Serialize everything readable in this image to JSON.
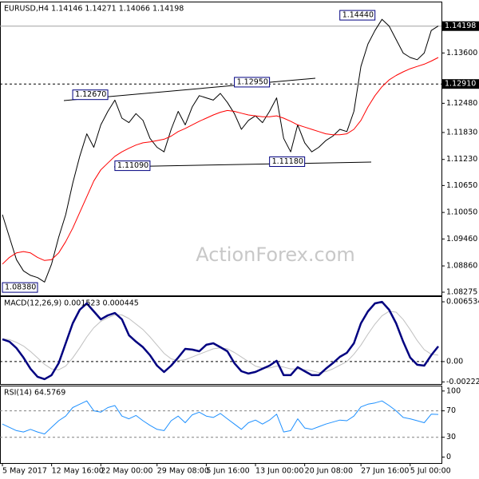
{
  "chart_data": [
    {
      "type": "line",
      "title": "EURUSD,H4  1.14146 1.14271 1.14066 1.14198",
      "watermark": "ActionForex.com",
      "ylim": [
        1.08204,
        1.14726
      ],
      "yticks": [
        {
          "value": 1.136,
          "label": "1.13600"
        },
        {
          "value": 1.1248,
          "label": "1.12480"
        },
        {
          "value": 1.1183,
          "label": "1.11830"
        },
        {
          "value": 1.1123,
          "label": "1.11230"
        },
        {
          "value": 1.1065,
          "label": "1.10650"
        },
        {
          "value": 1.1005,
          "label": "1.10050"
        },
        {
          "value": 1.0946,
          "label": "1.09460"
        },
        {
          "value": 1.0886,
          "label": "1.08860"
        },
        {
          "value": 1.08275,
          "label": "1.08275"
        }
      ],
      "hlines": [
        {
          "value": 1.14198,
          "label": "1.14198",
          "style": "solid"
        },
        {
          "value": 1.1291,
          "label": "1.12910",
          "style": "dashed"
        }
      ],
      "annotations": [
        {
          "label": "1.08380",
          "value": 1.0838,
          "index": 0
        },
        {
          "label": "1.12670",
          "value": 1.1267,
          "index": 10
        },
        {
          "label": "1.12950",
          "value": 1.1295,
          "index": 33
        },
        {
          "label": "1.11090",
          "value": 1.1109,
          "index": 16
        },
        {
          "label": "1.11180",
          "value": 1.1118,
          "index": 38
        },
        {
          "label": "1.14440",
          "value": 1.1444,
          "index": 48
        }
      ],
      "series": [
        {
          "color": "#000000",
          "width": 1,
          "values": [
            1.1,
            1.095,
            1.09,
            1.0875,
            1.0865,
            1.086,
            1.085,
            1.089,
            1.095,
            1.1,
            1.107,
            1.113,
            1.118,
            1.115,
            1.12,
            1.123,
            1.1255,
            1.1215,
            1.1205,
            1.1225,
            1.121,
            1.117,
            1.115,
            1.114,
            1.119,
            1.123,
            1.12,
            1.124,
            1.1265,
            1.126,
            1.1255,
            1.127,
            1.125,
            1.1225,
            1.119,
            1.121,
            1.122,
            1.1205,
            1.123,
            1.126,
            1.117,
            1.114,
            1.12,
            1.116,
            1.114,
            1.115,
            1.1165,
            1.1175,
            1.119,
            1.1185,
            1.123,
            1.133,
            1.138,
            1.141,
            1.1435,
            1.142,
            1.139,
            1.136,
            1.135,
            1.1345,
            1.136,
            1.141,
            1.142
          ]
        },
        {
          "color": "#ff0000",
          "width": 1,
          "values": [
            1.089,
            1.0905,
            1.0915,
            1.0918,
            1.0915,
            1.0905,
            1.0898,
            1.09,
            1.0915,
            1.094,
            1.097,
            1.1005,
            1.104,
            1.1075,
            1.11,
            1.1115,
            1.113,
            1.114,
            1.1148,
            1.1155,
            1.116,
            1.1162,
            1.1165,
            1.1168,
            1.1175,
            1.1185,
            1.1192,
            1.12,
            1.1208,
            1.1215,
            1.1222,
            1.1228,
            1.1232,
            1.123,
            1.1226,
            1.1222,
            1.122,
            1.1218,
            1.1218,
            1.122,
            1.1215,
            1.1208,
            1.12,
            1.1195,
            1.119,
            1.1185,
            1.118,
            1.1178,
            1.1178,
            1.118,
            1.119,
            1.121,
            1.124,
            1.1265,
            1.1285,
            1.13,
            1.131,
            1.1318,
            1.1325,
            1.133,
            1.1335,
            1.1342,
            1.135
          ]
        }
      ]
    },
    {
      "type": "line",
      "title": "MACD(12,26,9) 0.001523 0.000445",
      "ylim": [
        -0.00245,
        0.00706
      ],
      "yticks": [
        {
          "value": 0.006534,
          "label": "0.006534"
        },
        {
          "value": 0,
          "label": "0.00"
        },
        {
          "value": -0.002226,
          "label": "-0.002226"
        }
      ],
      "zero_line": true,
      "series": [
        {
          "color": "#c0c0c0",
          "width": 1,
          "values": [
            0.0025,
            0.0024,
            0.0021,
            0.0017,
            0.0011,
            0.0004,
            -0.0003,
            -0.0008,
            -0.0009,
            -0.0005,
            0.0004,
            0.0015,
            0.0027,
            0.0037,
            0.0044,
            0.0048,
            0.0051,
            0.0051,
            0.0047,
            0.0041,
            0.0035,
            0.0027,
            0.0018,
            0.0009,
            0.0003,
            0.0001,
            0.0002,
            0.0005,
            0.0008,
            0.0011,
            0.0014,
            0.0015,
            0.0014,
            0.001,
            0.0005,
            0.0,
            -0.0005,
            -0.0007,
            -0.0007,
            -0.0005,
            -0.0006,
            -0.0008,
            -0.0008,
            -0.0009,
            -0.001,
            -0.0012,
            -0.0011,
            -0.0008,
            -0.0004,
            0.0,
            0.0008,
            0.0018,
            0.003,
            0.0041,
            0.005,
            0.0055,
            0.0054,
            0.0046,
            0.0035,
            0.0023,
            0.0013,
            0.0008,
            0.0007
          ]
        },
        {
          "color": "#000080",
          "width": 2.5,
          "values": [
            0.00244,
            0.00218,
            0.00148,
            0.00044,
            -0.00078,
            -0.00166,
            -0.00192,
            -0.00148,
            -0.00017,
            0.002,
            0.00418,
            0.00566,
            0.00636,
            0.00549,
            0.00462,
            0.00505,
            0.00531,
            0.00462,
            0.00288,
            0.00218,
            0.00157,
            0.0007,
            -0.00044,
            -0.00113,
            -0.00044,
            0.00044,
            0.00139,
            0.00131,
            0.00113,
            0.00183,
            0.002,
            0.00157,
            0.00113,
            -0.00017,
            -0.00105,
            -0.00131,
            -0.00113,
            -0.00078,
            -0.00044,
            9e-05,
            -0.00148,
            -0.00148,
            -0.00061,
            -0.00105,
            -0.00148,
            -0.00148,
            -0.00078,
            -0.00017,
            0.00052,
            0.00096,
            0.002,
            0.00418,
            0.00549,
            0.00636,
            0.00653,
            0.00566,
            0.00418,
            0.00218,
            0.00044,
            -0.00035,
            -0.00044,
            0.0007,
            0.00166
          ]
        }
      ]
    },
    {
      "type": "line",
      "title": "RSI(14) 64.5769",
      "ylim": [
        -9,
        107
      ],
      "yticks": [
        100,
        70,
        30,
        0
      ],
      "levels": [
        70,
        30
      ],
      "categories": [
        "5 May 2017",
        null,
        null,
        null,
        null,
        null,
        null,
        "12 May 16:00",
        null,
        null,
        null,
        null,
        null,
        null,
        "22 May 00:00",
        null,
        null,
        null,
        null,
        null,
        null,
        null,
        "29 May 08:00",
        null,
        null,
        null,
        null,
        null,
        null,
        "5 Jun 16:00",
        null,
        null,
        null,
        null,
        null,
        null,
        "13 Jun 00:00",
        null,
        null,
        null,
        null,
        null,
        null,
        "20 Jun 08:00",
        null,
        null,
        null,
        null,
        null,
        null,
        null,
        "27 Jun 16:00",
        null,
        null,
        null,
        null,
        null,
        null,
        "5 Jul 00:00",
        null,
        null,
        null,
        null
      ],
      "series": [
        {
          "color": "#1e90ff",
          "width": 1,
          "values": [
            50,
            45,
            40,
            38,
            42,
            38,
            35,
            45,
            55,
            62,
            75,
            80,
            85,
            70,
            68,
            75,
            78,
            62,
            58,
            63,
            55,
            48,
            42,
            40,
            55,
            62,
            52,
            64,
            68,
            62,
            60,
            66,
            58,
            50,
            42,
            52,
            56,
            50,
            56,
            65,
            38,
            40,
            58,
            44,
            42,
            46,
            50,
            53,
            56,
            55,
            62,
            76,
            80,
            82,
            85,
            78,
            70,
            60,
            58,
            55,
            52,
            65,
            64.58
          ]
        }
      ]
    }
  ]
}
